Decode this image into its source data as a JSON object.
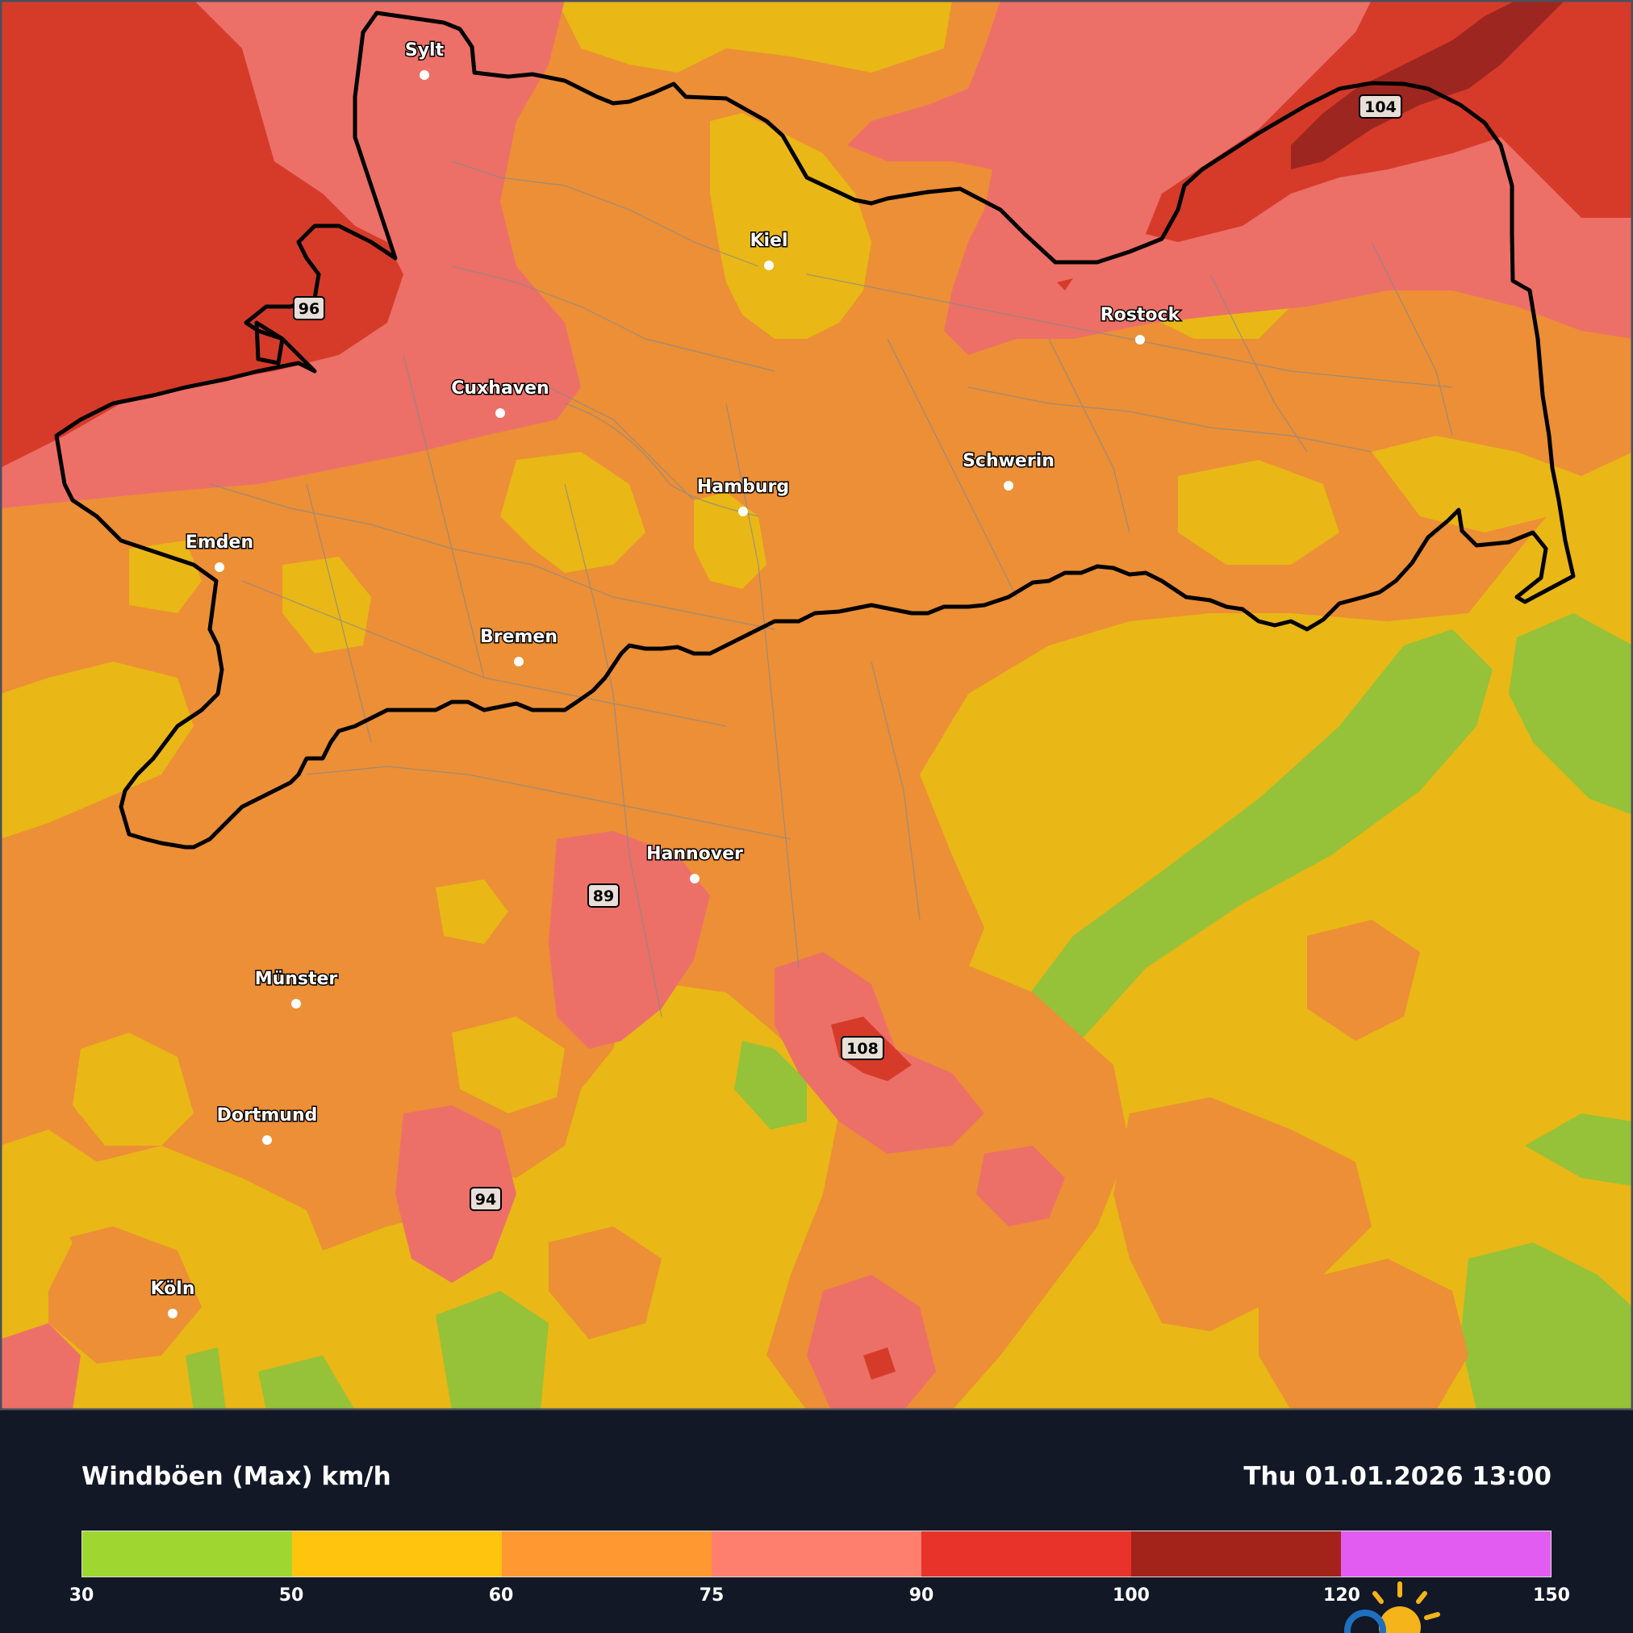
{
  "map": {
    "cities": [
      {
        "name": "Sylt"
      },
      {
        "name": "Kiel"
      },
      {
        "name": "Rostock"
      },
      {
        "name": "Cuxhaven"
      },
      {
        "name": "Schwerin"
      },
      {
        "name": "Hamburg"
      },
      {
        "name": "Emden"
      },
      {
        "name": "Bremen"
      },
      {
        "name": "Hannover"
      },
      {
        "name": "Münster"
      },
      {
        "name": "Dortmund"
      },
      {
        "name": "Köln"
      }
    ],
    "max_labels": [
      "96",
      "104",
      "89",
      "108",
      "94"
    ]
  },
  "legend": {
    "title": "Windböen (Max) km/h",
    "datetime": "Thu 01.01.2026 13:00",
    "ticks": [
      "30",
      "50",
      "60",
      "75",
      "90",
      "100",
      "120",
      "150"
    ],
    "colors": [
      "#9fd630",
      "#ffc40e",
      "#ff9830",
      "#ff7f6e",
      "#e8332a",
      "#a3231b",
      "#e35cf2"
    ]
  },
  "palette": {
    "green": "#95c238",
    "yellow": "#e9b716",
    "orange": "#ec8f36",
    "salmon": "#ec7068",
    "red": "#d63b2a",
    "darkred": "#9e2620"
  }
}
